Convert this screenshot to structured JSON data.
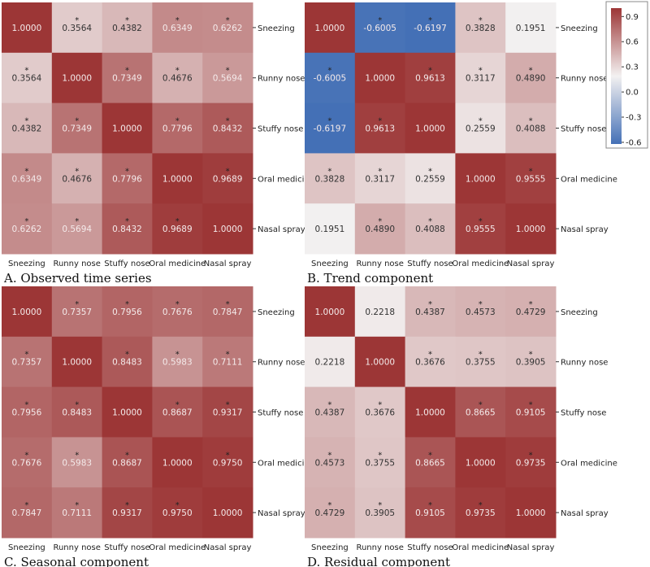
{
  "chart_data": [
    {
      "type": "heatmap",
      "title": "A. Observed time series",
      "labels": [
        "Sneezing",
        "Runny nose",
        "Stuffy nose",
        "Oral medicine",
        "Nasal spray"
      ],
      "values": [
        [
          1.0,
          0.3564,
          0.4382,
          0.6349,
          0.6262
        ],
        [
          0.3564,
          1.0,
          0.7349,
          0.4676,
          0.5694
        ],
        [
          0.4382,
          0.7349,
          1.0,
          0.7796,
          0.8432
        ],
        [
          0.6349,
          0.4676,
          0.7796,
          1.0,
          0.9689
        ],
        [
          0.6262,
          0.5694,
          0.8432,
          0.9689,
          1.0
        ]
      ],
      "significant": [
        [
          0,
          1,
          1,
          1,
          1
        ],
        [
          1,
          0,
          1,
          1,
          1
        ],
        [
          1,
          1,
          0,
          1,
          1
        ],
        [
          1,
          1,
          1,
          0,
          1
        ],
        [
          1,
          1,
          1,
          1,
          0
        ]
      ]
    },
    {
      "type": "heatmap",
      "title": "B. Trend component",
      "labels": [
        "Sneezing",
        "Runny nose",
        "Stuffy nose",
        "Oral medicine",
        "Nasal spray"
      ],
      "values": [
        [
          1.0,
          -0.6005,
          -0.6197,
          0.3828,
          0.1951
        ],
        [
          -0.6005,
          1.0,
          0.9613,
          0.3117,
          0.489
        ],
        [
          -0.6197,
          0.9613,
          1.0,
          0.2559,
          0.4088
        ],
        [
          0.3828,
          0.3117,
          0.2559,
          1.0,
          0.9555
        ],
        [
          0.1951,
          0.489,
          0.4088,
          0.9555,
          1.0
        ]
      ],
      "significant": [
        [
          0,
          1,
          1,
          1,
          0
        ],
        [
          1,
          0,
          1,
          1,
          1
        ],
        [
          1,
          1,
          0,
          1,
          1
        ],
        [
          1,
          1,
          1,
          0,
          1
        ],
        [
          0,
          1,
          1,
          1,
          0
        ]
      ]
    },
    {
      "type": "heatmap",
      "title": "C. Seasonal component",
      "labels": [
        "Sneezing",
        "Runny nose",
        "Stuffy nose",
        "Oral medicine",
        "Nasal spray"
      ],
      "values": [
        [
          1.0,
          0.7357,
          0.7956,
          0.7676,
          0.7847
        ],
        [
          0.7357,
          1.0,
          0.8483,
          0.5983,
          0.7111
        ],
        [
          0.7956,
          0.8483,
          1.0,
          0.8687,
          0.9317
        ],
        [
          0.7676,
          0.5983,
          0.8687,
          1.0,
          0.975
        ],
        [
          0.7847,
          0.7111,
          0.9317,
          0.975,
          1.0
        ]
      ],
      "significant": [
        [
          0,
          1,
          1,
          1,
          1
        ],
        [
          1,
          0,
          1,
          1,
          1
        ],
        [
          1,
          1,
          0,
          1,
          1
        ],
        [
          1,
          1,
          1,
          0,
          1
        ],
        [
          1,
          1,
          1,
          1,
          0
        ]
      ]
    },
    {
      "type": "heatmap",
      "title": "D. Residual component",
      "labels": [
        "Sneezing",
        "Runny nose",
        "Stuffy nose",
        "Oral medicine",
        "Nasal spray"
      ],
      "values": [
        [
          1.0,
          0.2218,
          0.4387,
          0.4573,
          0.4729
        ],
        [
          0.2218,
          1.0,
          0.3676,
          0.3755,
          0.3905
        ],
        [
          0.4387,
          0.3676,
          1.0,
          0.8665,
          0.9105
        ],
        [
          0.4573,
          0.3755,
          0.8665,
          1.0,
          0.9735
        ],
        [
          0.4729,
          0.3905,
          0.9105,
          0.9735,
          1.0
        ]
      ],
      "significant": [
        [
          0,
          0,
          1,
          1,
          1
        ],
        [
          0,
          0,
          1,
          1,
          1
        ],
        [
          1,
          1,
          0,
          1,
          1
        ],
        [
          1,
          1,
          1,
          0,
          1
        ],
        [
          1,
          1,
          1,
          1,
          0
        ]
      ]
    }
  ],
  "colorbar": {
    "vmin": -0.62,
    "vmax": 1.0,
    "ticks": [
      "0.9",
      "0.6",
      "0.3",
      "0.0",
      "-0.3",
      "-0.6"
    ],
    "tick_values": [
      0.9,
      0.6,
      0.3,
      0.0,
      -0.3,
      -0.6
    ],
    "low_color": "#4470b6",
    "mid_color": "#f3f1f1",
    "high_color": "#9c3636"
  },
  "star_symbol": "*"
}
